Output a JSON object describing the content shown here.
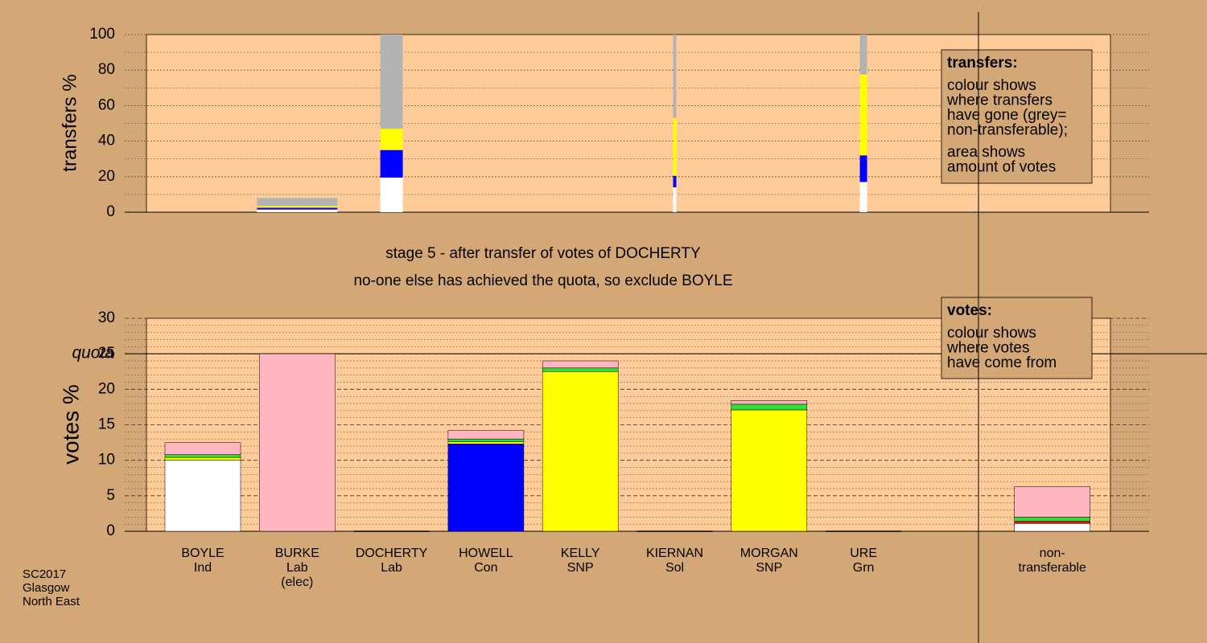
{
  "chart_data": [
    {
      "type": "bar",
      "stacked": true,
      "ylabel": "transfers %",
      "categories": [
        [
          "BOYLE"
        ],
        [
          "BURKE"
        ],
        [
          "DOCHERTY"
        ],
        [
          "HOWELL"
        ],
        [
          "KELLY"
        ],
        [
          "KIERNAN"
        ],
        [
          "MORGAN"
        ],
        [
          "URE"
        ],
        [
          "non-transferable"
        ]
      ],
      "sizes": [
        null,
        100,
        28,
        null,
        null,
        4,
        null,
        9,
        null
      ],
      "series": [
        {
          "color": "#ffffff",
          "values": [
            null,
            1.5,
            19.5,
            null,
            null,
            14,
            null,
            17,
            null
          ]
        },
        {
          "color": "#0000ff",
          "values": [
            null,
            1,
            15.5,
            null,
            null,
            6.5,
            null,
            15,
            null
          ]
        },
        {
          "color": "#ffff00",
          "values": [
            null,
            1,
            12,
            null,
            null,
            32.5,
            null,
            45.5,
            null
          ]
        },
        {
          "color": "#b3b3b3",
          "values": [
            null,
            4.5,
            53,
            null,
            null,
            47,
            null,
            22.5,
            null
          ]
        }
      ],
      "ylim": [
        0,
        100
      ],
      "yticks": [
        0,
        20,
        40,
        60,
        80,
        100
      ],
      "minor_yticks": [
        10,
        30,
        50,
        70,
        90
      ],
      "legend_title": "transfers:",
      "legend_lines": [
        [
          "colour shows",
          "where transfers",
          "have gone (grey=",
          "non-transferable);"
        ],
        [
          "area shows",
          "amount of votes"
        ]
      ]
    },
    {
      "type": "bar",
      "stacked": true,
      "ylabel": "votes %",
      "title": "stage 5 - after transfer of votes of DOCHERTY",
      "subtitle": "no-one else has achieved the quota, so exclude BOYLE",
      "categories": [
        [
          "BOYLE",
          "Ind"
        ],
        [
          "BURKE",
          "Lab",
          "(elec)"
        ],
        [
          "DOCHERTY",
          "Lab"
        ],
        [
          "HOWELL",
          "Con"
        ],
        [
          "KELLY",
          "SNP"
        ],
        [
          "KIERNAN",
          "Sol"
        ],
        [
          "MORGAN",
          "SNP"
        ],
        [
          "URE",
          "Grn"
        ],
        [
          "non-",
          "transferable"
        ]
      ],
      "series": [
        {
          "color": "#ffffff",
          "values": [
            10,
            null,
            0,
            null,
            null,
            0,
            null,
            0,
            1.1
          ]
        },
        {
          "color": "#0000ff",
          "values": [
            null,
            null,
            null,
            12.3,
            null,
            null,
            null,
            null,
            null
          ]
        },
        {
          "color": "#ffff00",
          "values": [
            0.4,
            null,
            null,
            0.3,
            22.5,
            null,
            17.1,
            null,
            null
          ]
        },
        {
          "color": "#ff0000",
          "values": [
            null,
            null,
            null,
            null,
            null,
            null,
            null,
            null,
            0.3
          ]
        },
        {
          "color": "#33dd33",
          "values": [
            0.4,
            null,
            null,
            0.4,
            0.5,
            null,
            0.8,
            null,
            0.6
          ]
        },
        {
          "color": "#ffb6c1",
          "values": [
            1.7,
            25,
            null,
            1.2,
            1.0,
            null,
            0.5,
            null,
            4.3
          ]
        }
      ],
      "ylim": [
        0,
        30
      ],
      "yticks": [
        0,
        5,
        10,
        15,
        20,
        25,
        30
      ],
      "minor_yticks": [
        1,
        2,
        3,
        4,
        6,
        7,
        8,
        9,
        11,
        12,
        13,
        14,
        16,
        17,
        18,
        19,
        21,
        22,
        23,
        24,
        26,
        27,
        28,
        29
      ],
      "quota": 25,
      "quota_label": "quota",
      "legend_title": "votes:",
      "legend_lines": [
        [
          "colour shows",
          "where votes",
          "have come from"
        ]
      ]
    }
  ],
  "footnote": [
    "SC2017",
    "Glasgow",
    "North East"
  ]
}
